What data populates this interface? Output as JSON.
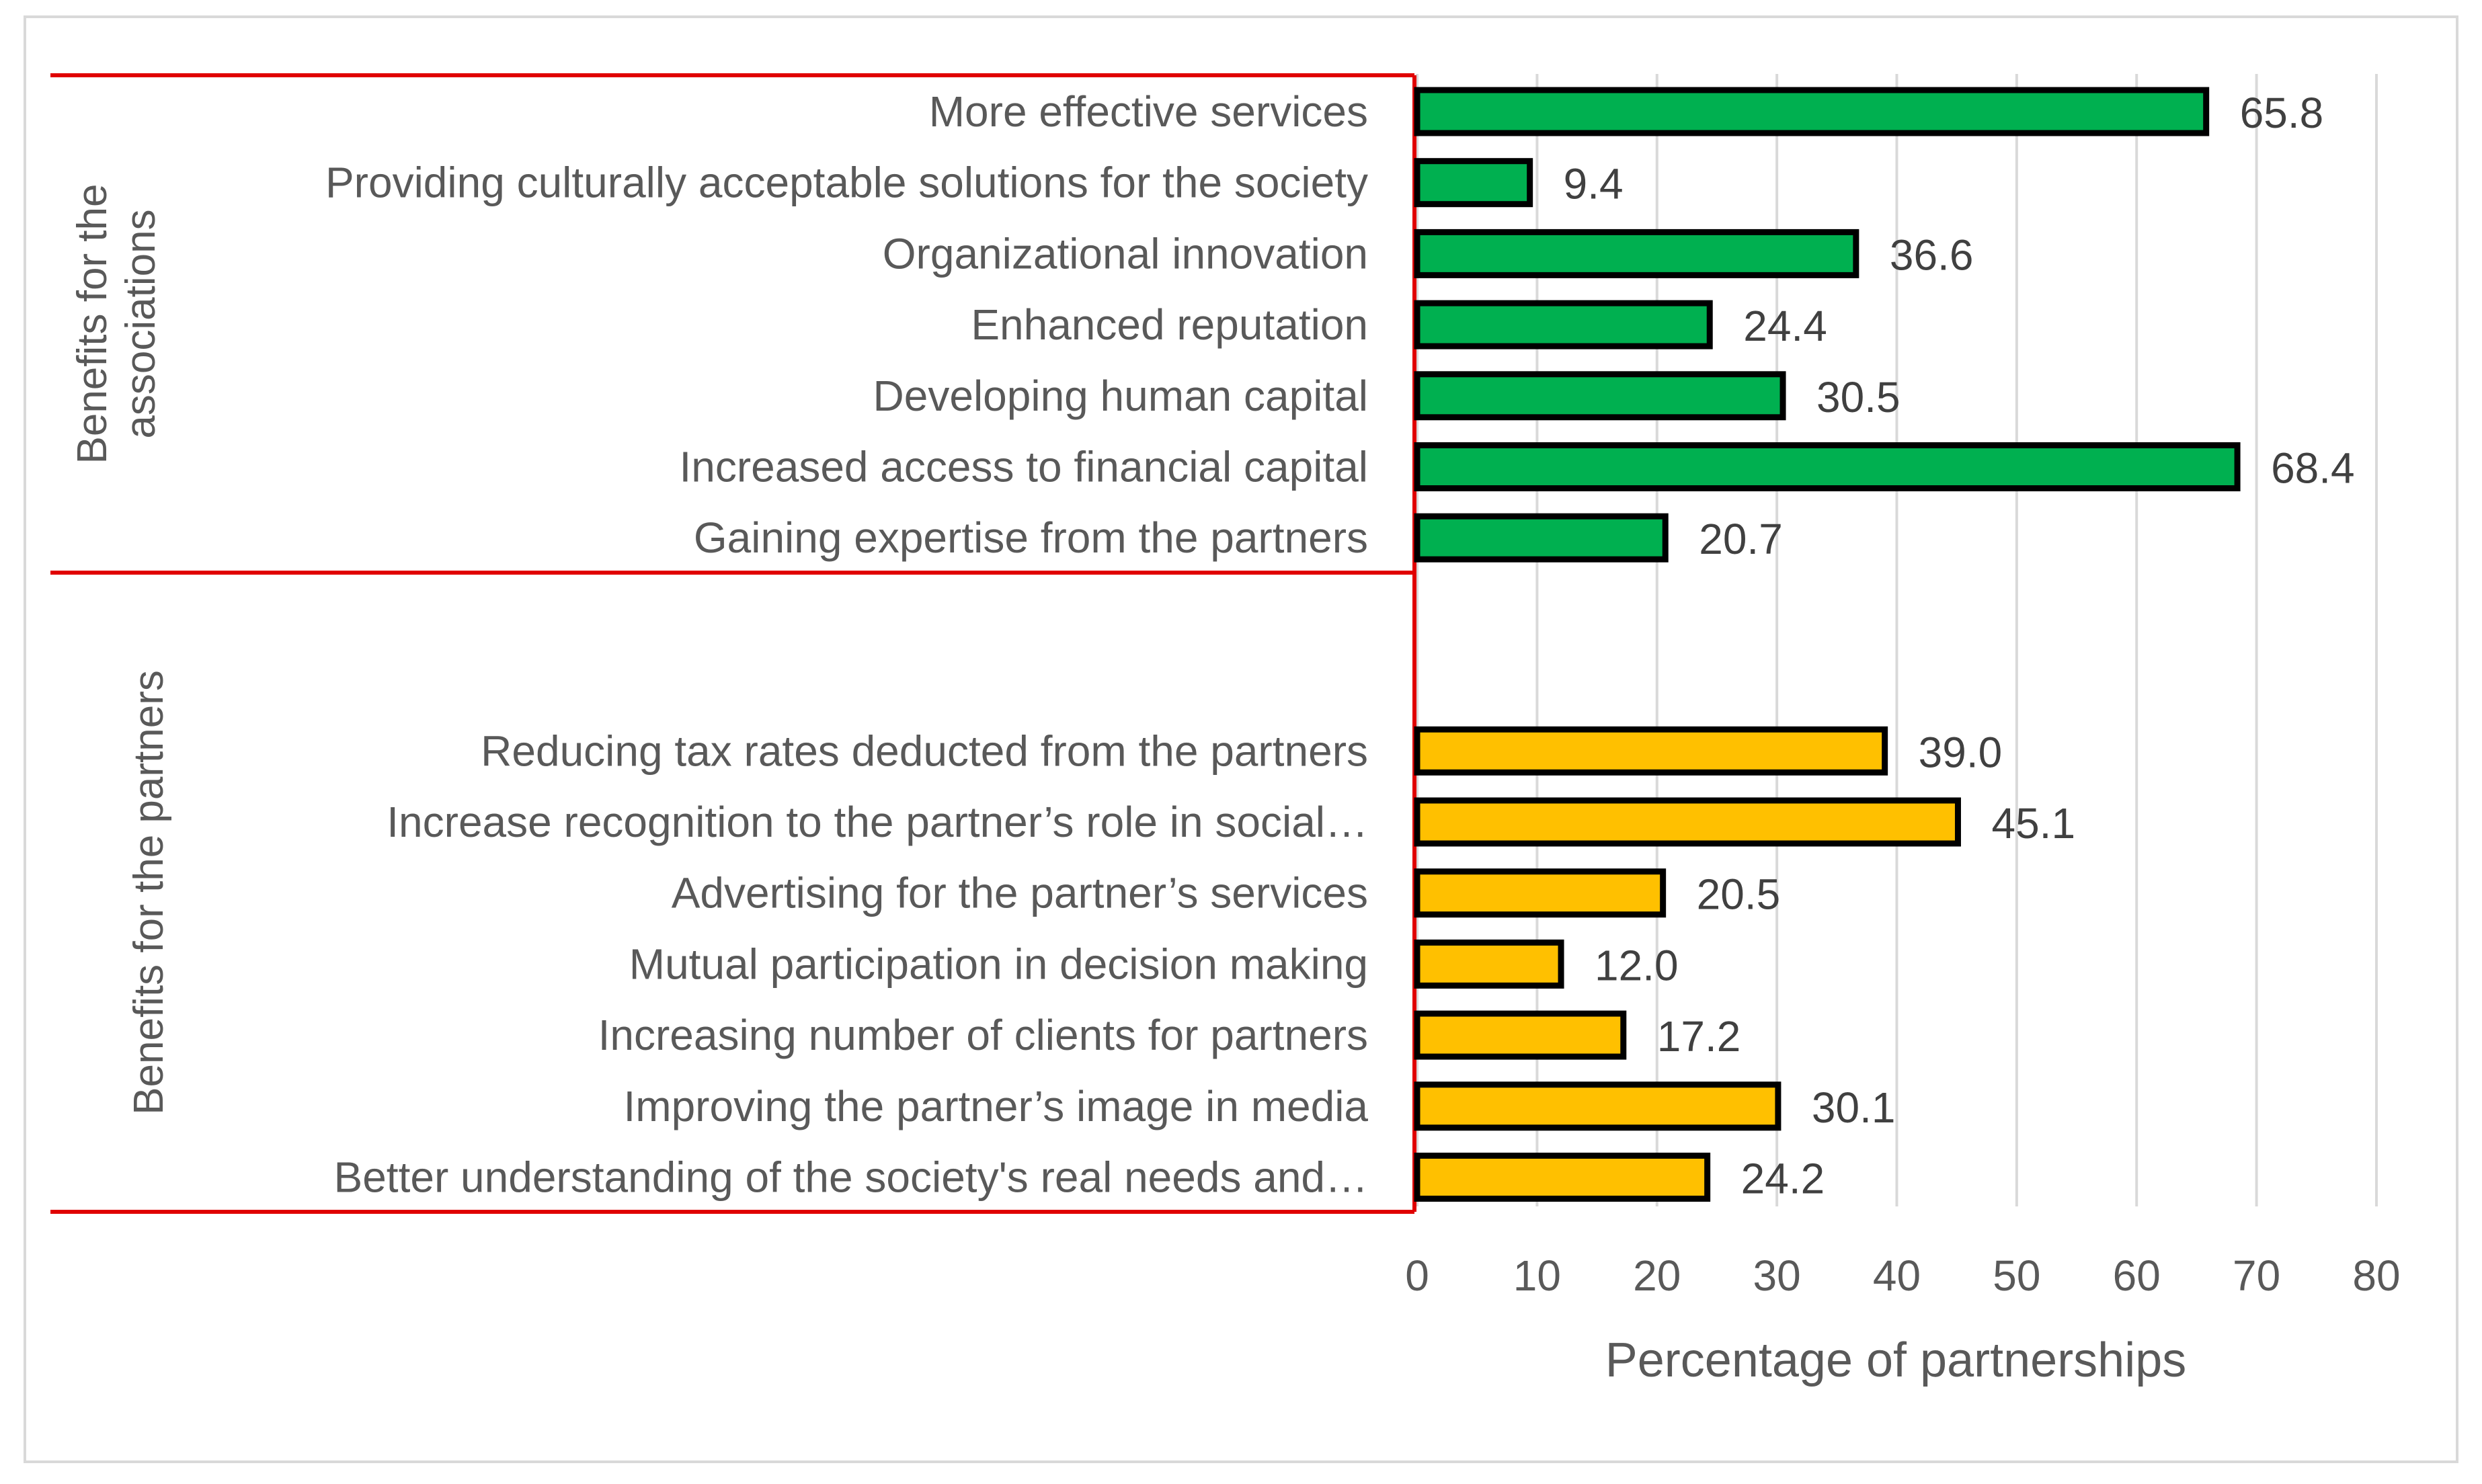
{
  "chart_data": {
    "type": "bar",
    "orientation": "horizontal",
    "title": "",
    "xlabel": "Percentage of partnerships",
    "ylabel": "",
    "xlim": [
      0,
      80
    ],
    "xticks": [
      0,
      10,
      20,
      30,
      40,
      50,
      60,
      70,
      80
    ],
    "grid": true,
    "value_format": "0.0",
    "colors": {
      "associations": "#00B050",
      "partners": "#FFC000",
      "bar_outline": "#000000",
      "group_box": "#E00000",
      "gridline": "#D9D9D9",
      "frame": "#D9D9D9"
    },
    "groups": [
      {
        "key": "associations",
        "name_lines": [
          "Benefits for the",
          "associations"
        ],
        "items": [
          {
            "label": "More effective services",
            "value": 65.8
          },
          {
            "label": "Providing culturally acceptable solutions for the society",
            "value": 9.4
          },
          {
            "label": "Organizational innovation",
            "value": 36.6
          },
          {
            "label": "Enhanced reputation",
            "value": 24.4
          },
          {
            "label": "Developing human capital",
            "value": 30.5
          },
          {
            "label": "Increased access to financial capital",
            "value": 68.4
          },
          {
            "label": "Gaining expertise from the partners",
            "value": 20.7
          }
        ]
      },
      {
        "key": "partners",
        "name_lines": [
          "Benefits for the partners"
        ],
        "items": [
          {
            "label": "Reducing tax rates deducted from the partners",
            "value": 39.0
          },
          {
            "label": "Increase recognition to the partner’s role in social…",
            "value": 45.1
          },
          {
            "label": "Advertising for the partner’s services",
            "value": 20.5
          },
          {
            "label": "Mutual participation in decision making",
            "value": 12.0
          },
          {
            "label": "Increasing number of clients for partners",
            "value": 17.2
          },
          {
            "label": "Improving the partner’s image in media",
            "value": 30.1
          },
          {
            "label": "Better understanding of the society's real needs and…",
            "value": 24.2
          }
        ]
      }
    ]
  }
}
